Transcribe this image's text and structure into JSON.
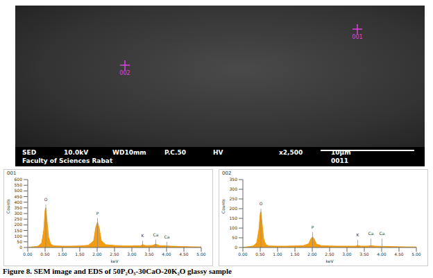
{
  "sem": {
    "markers": [
      "001",
      "002"
    ],
    "info_line1": [
      "SED",
      "10.0kV",
      "WD10mm",
      "P.C.50",
      "HV",
      "x2,500",
      "10μm"
    ],
    "info_line2": [
      "Faculty of Sciences Rabat",
      "0011"
    ]
  },
  "chart_data": [
    {
      "type": "area",
      "title": "001",
      "x_label": "keV",
      "y_label": "Counts",
      "color": "#f39c12",
      "xlim": [
        0,
        5
      ],
      "ylim": [
        0,
        600
      ],
      "xticks": [
        {
          "value": 0,
          "label": "0.00"
        },
        {
          "value": 0.5,
          "label": "0.50"
        },
        {
          "value": 1,
          "label": "1.00"
        },
        {
          "value": 1.5,
          "label": "1.50"
        },
        {
          "value": 2,
          "label": "2.00"
        },
        {
          "value": 2.5,
          "label": "2.50"
        },
        {
          "value": 3,
          "label": "3.00"
        },
        {
          "value": 3.5,
          "label": "3.50"
        },
        {
          "value": 4,
          "label": "4.00"
        },
        {
          "value": 4.5,
          "label": "4.50"
        },
        {
          "value": 5,
          "label": "5.00"
        }
      ],
      "yticks": [
        0,
        50,
        100,
        150,
        200,
        250,
        300,
        350,
        400,
        450,
        500,
        550,
        600
      ],
      "x": [
        0,
        0.1,
        0.2,
        0.3,
        0.4,
        0.46,
        0.5,
        0.52,
        0.55,
        0.6,
        0.66,
        0.75,
        1.0,
        1.25,
        1.5,
        1.75,
        1.9,
        1.96,
        2.01,
        2.06,
        2.12,
        2.25,
        2.5,
        2.75,
        3.0,
        3.25,
        3.31,
        3.4,
        3.6,
        3.69,
        3.8,
        4.01,
        4.25,
        4.5,
        4.75,
        5.0
      ],
      "values": [
        0,
        5,
        8,
        12,
        40,
        150,
        330,
        350,
        250,
        90,
        30,
        15,
        12,
        12,
        14,
        20,
        60,
        180,
        225,
        170,
        60,
        25,
        18,
        14,
        14,
        16,
        25,
        16,
        18,
        30,
        16,
        14,
        10,
        8,
        6,
        5
      ],
      "peaks": [
        {
          "x": 0.52,
          "y": 380,
          "label": "O"
        },
        {
          "x": 2.01,
          "y": 260,
          "label": "P"
        },
        {
          "x": 3.31,
          "y": 60,
          "label": "K"
        },
        {
          "x": 3.69,
          "y": 70,
          "label": "Ca"
        },
        {
          "x": 4.01,
          "y": 50,
          "label": "Ca"
        }
      ]
    },
    {
      "type": "area",
      "title": "002",
      "x_label": "keV",
      "y_label": "Counts",
      "color": "#f39c12",
      "xlim": [
        0,
        5
      ],
      "ylim": [
        0,
        350
      ],
      "xticks": [
        {
          "value": 0,
          "label": "0.00"
        },
        {
          "value": 0.5,
          "label": "0.50"
        },
        {
          "value": 1,
          "label": "1.00"
        },
        {
          "value": 1.5,
          "label": "1.50"
        },
        {
          "value": 2,
          "label": "2.00"
        },
        {
          "value": 2.5,
          "label": "2.50"
        },
        {
          "value": 3,
          "label": "3.00"
        },
        {
          "value": 3.5,
          "label": "3.50"
        },
        {
          "value": 4,
          "label": "4.00"
        },
        {
          "value": 4.5,
          "label": "4.50"
        },
        {
          "value": 5,
          "label": "5.00"
        }
      ],
      "yticks": [
        0,
        50,
        100,
        150,
        200,
        250,
        300,
        350
      ],
      "x": [
        0,
        0.1,
        0.2,
        0.3,
        0.4,
        0.46,
        0.5,
        0.52,
        0.55,
        0.6,
        0.66,
        0.75,
        1.0,
        1.25,
        1.5,
        1.75,
        1.9,
        1.96,
        2.01,
        2.06,
        2.12,
        2.25,
        2.5,
        2.75,
        3.0,
        3.25,
        3.31,
        3.4,
        3.6,
        3.69,
        3.8,
        4.01,
        4.25,
        4.5,
        4.75,
        5.0
      ],
      "values": [
        0,
        3,
        5,
        8,
        25,
        90,
        175,
        185,
        130,
        45,
        15,
        8,
        7,
        7,
        8,
        10,
        20,
        45,
        55,
        42,
        18,
        10,
        8,
        7,
        7,
        7,
        10,
        7,
        7,
        10,
        7,
        6,
        5,
        4,
        3,
        3
      ],
      "peaks": [
        {
          "x": 0.52,
          "y": 200,
          "label": "O"
        },
        {
          "x": 2.01,
          "y": 80,
          "label": "P"
        },
        {
          "x": 3.31,
          "y": 40,
          "label": "K"
        },
        {
          "x": 3.69,
          "y": 45,
          "label": "Ca"
        },
        {
          "x": 4.01,
          "y": 45,
          "label": "Ca"
        }
      ]
    }
  ],
  "caption": "Figure 8. SEM image and EDS of 50P₂O₅-30CaO-20K₂O glassy sample"
}
